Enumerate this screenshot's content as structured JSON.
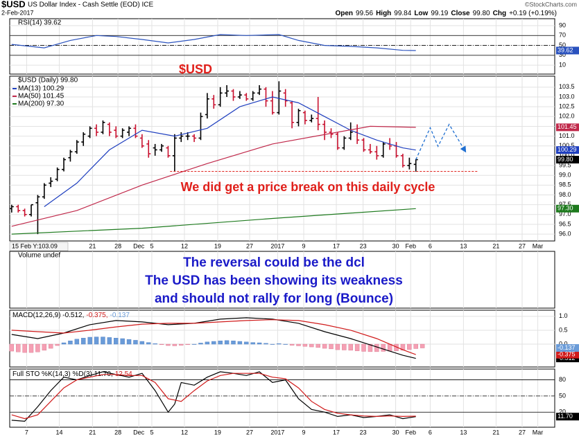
{
  "header": {
    "symbol": "$USD",
    "name": "US Dollar Index - Cash Settle (EOD) ICE",
    "date": "2-Feb-2017",
    "copyright": "©StockCharts.com",
    "quote": [
      "Open",
      "99.56",
      "High",
      "99.84",
      "Low",
      "99.19",
      "Close",
      "99.80",
      "Chg",
      "+0.19 (+0.19%)"
    ]
  },
  "chart_data": [
    {
      "type": "line",
      "title": "RSI(14) 39.62",
      "xlim": [
        -0.3,
        83.3
      ],
      "ylim": [
        -8,
        104
      ],
      "yticks": [
        90,
        70,
        50,
        30,
        10
      ],
      "levels": [
        {
          "value": 70,
          "style": "solid"
        },
        {
          "value": 50,
          "style": "dashdot"
        },
        {
          "value": 30,
          "style": "solid"
        }
      ],
      "series": [
        {
          "color": "#2a52be",
          "last_label": "39.62",
          "x": [
            0,
            5,
            9,
            13,
            16,
            20,
            24,
            28,
            32,
            36,
            41,
            44,
            48,
            52,
            56,
            60,
            62
          ],
          "values": [
            52,
            45,
            60,
            70,
            68,
            62,
            55,
            62,
            72,
            70,
            72,
            60,
            50,
            48,
            45,
            40,
            39.62
          ]
        }
      ]
    },
    {
      "type": "ohlc",
      "title": "$USD (Daily) 99.80",
      "xlim": [
        -0.3,
        83.3
      ],
      "ylim": [
        95.65,
        104.06
      ],
      "up_color": "#000000",
      "down_color": "#c8102e",
      "last_label": "99.80",
      "yticks": [
        103.5,
        {
          "value": 103,
          "label": "103.0"
        },
        102.5,
        {
          "value": 102,
          "label": "102.0"
        },
        101.5,
        {
          "value": 101,
          "label": "101.0"
        },
        100.5,
        {
          "value": 100,
          "label": "100.0"
        },
        99.5,
        {
          "value": 99,
          "label": "99.0"
        },
        98.5,
        {
          "value": 98,
          "label": "98.0"
        },
        97.5,
        {
          "value": 97,
          "label": "97.0"
        },
        96.5,
        {
          "value": 96,
          "label": "96.0"
        }
      ],
      "xticks": [
        {
          "value": 12.4,
          "label": "21"
        },
        {
          "value": 16.3,
          "label": "28"
        },
        {
          "value": 19.5,
          "label": "Dec"
        },
        {
          "value": 21.5,
          "label": "5"
        },
        {
          "value": 26.5,
          "label": "12"
        },
        {
          "value": 31.6,
          "label": "19"
        },
        {
          "value": 36.5,
          "label": "27"
        },
        {
          "value": 40.8,
          "label": "2017"
        },
        {
          "value": 44.8,
          "label": "9"
        },
        {
          "value": 49.8,
          "label": "17"
        },
        {
          "value": 53.9,
          "label": "23"
        },
        {
          "value": 58.9,
          "label": "30"
        },
        {
          "value": 61.2,
          "label": "Feb"
        },
        {
          "value": 64.2,
          "label": "6"
        },
        {
          "value": 69.3,
          "label": "13"
        },
        {
          "value": 74.3,
          "label": "21"
        },
        {
          "value": 78.3,
          "label": "27"
        },
        {
          "value": 80.7,
          "label": "Mar"
        }
      ],
      "ohlc": [
        [
          97.3,
          97.5,
          97.1,
          97.4
        ],
        [
          97.4,
          97.5,
          97.1,
          97.2
        ],
        [
          97.2,
          97.3,
          96.9,
          97.0
        ],
        [
          97.0,
          97.5,
          96.9,
          97.5
        ],
        [
          97.6,
          98.0,
          96.0,
          97.9
        ],
        [
          97.9,
          98.6,
          97.8,
          98.5
        ],
        [
          98.6,
          98.9,
          98.4,
          98.7
        ],
        [
          98.8,
          99.4,
          98.7,
          99.3
        ],
        [
          99.3,
          99.9,
          99.2,
          99.8
        ],
        [
          99.9,
          100.3,
          99.7,
          100.2
        ],
        [
          100.2,
          100.8,
          100.1,
          100.7
        ],
        [
          100.7,
          101.2,
          100.5,
          101.1
        ],
        [
          101.0,
          101.5,
          100.9,
          101.4
        ],
        [
          101.4,
          101.6,
          101.0,
          101.2
        ],
        [
          101.2,
          101.8,
          101.1,
          101.7
        ],
        [
          101.6,
          101.7,
          101.0,
          101.2
        ],
        [
          101.3,
          101.5,
          100.9,
          101.0
        ],
        [
          101.0,
          101.4,
          100.9,
          101.3
        ],
        [
          101.2,
          101.5,
          101.0,
          101.4
        ],
        [
          101.4,
          101.6,
          100.9,
          101.0
        ],
        [
          100.9,
          101.1,
          100.4,
          100.5
        ],
        [
          100.6,
          100.8,
          99.9,
          100.1
        ],
        [
          100.4,
          100.6,
          100.0,
          100.3
        ],
        [
          100.3,
          100.6,
          100.2,
          100.5
        ],
        [
          100.4,
          100.5,
          99.9,
          100.0
        ],
        [
          100.0,
          101.1,
          99.2,
          100.9
        ],
        [
          100.9,
          101.2,
          100.7,
          101.0
        ],
        [
          101.0,
          101.2,
          100.8,
          101.0
        ],
        [
          101.0,
          101.1,
          100.7,
          100.9
        ],
        [
          100.9,
          102.2,
          100.8,
          102.0
        ],
        [
          102.1,
          103.2,
          101.9,
          102.9
        ],
        [
          102.9,
          103.1,
          102.4,
          102.6
        ],
        [
          102.6,
          103.5,
          102.5,
          103.2
        ],
        [
          103.2,
          103.6,
          103.0,
          103.3
        ],
        [
          103.3,
          103.4,
          102.8,
          103.0
        ],
        [
          103.0,
          103.3,
          102.9,
          103.1
        ],
        [
          103.1,
          103.2,
          102.8,
          102.9
        ],
        [
          102.9,
          103.3,
          102.8,
          103.2
        ],
        [
          103.2,
          103.6,
          103.1,
          103.4
        ],
        [
          103.4,
          103.5,
          102.5,
          102.8
        ],
        [
          102.8,
          103.3,
          102.1,
          102.2
        ],
        [
          102.2,
          103.8,
          102.1,
          103.3
        ],
        [
          103.2,
          103.4,
          102.5,
          102.8
        ],
        [
          102.7,
          102.8,
          101.4,
          101.7
        ],
        [
          101.7,
          102.4,
          101.5,
          102.3
        ],
        [
          102.2,
          102.3,
          101.6,
          101.8
        ],
        [
          101.8,
          102.1,
          101.7,
          101.9
        ],
        [
          101.9,
          103.0,
          101.3,
          101.6
        ],
        [
          101.6,
          101.8,
          100.8,
          101.2
        ],
        [
          101.2,
          101.4,
          100.9,
          101.1
        ],
        [
          101.1,
          101.2,
          100.3,
          100.4
        ],
        [
          100.4,
          101.0,
          100.3,
          100.9
        ],
        [
          100.9,
          101.7,
          100.8,
          101.2
        ],
        [
          101.2,
          101.6,
          100.6,
          100.8
        ],
        [
          100.8,
          100.9,
          100.2,
          100.3
        ],
        [
          100.3,
          100.6,
          100.1,
          100.2
        ],
        [
          100.2,
          100.5,
          99.8,
          100.0
        ],
        [
          100.0,
          100.7,
          99.9,
          100.6
        ],
        [
          100.6,
          100.9,
          100.3,
          100.5
        ],
        [
          100.5,
          100.7,
          99.9,
          100.0
        ],
        [
          100.0,
          100.1,
          99.4,
          99.5
        ],
        [
          99.5,
          99.9,
          99.3,
          99.6
        ],
        [
          99.56,
          99.84,
          99.19,
          99.8
        ]
      ],
      "series": [
        {
          "name": "MA(13) 100.29",
          "color": "#1f3fbf",
          "last_label": "100.29",
          "x": [
            5,
            10,
            15,
            20,
            25,
            30,
            35,
            40,
            44,
            48,
            52,
            56,
            60,
            62
          ],
          "values": [
            97.4,
            98.6,
            100.3,
            101.3,
            101.0,
            101.4,
            102.5,
            103.0,
            102.7,
            102.0,
            101.3,
            100.8,
            100.4,
            100.29
          ]
        },
        {
          "name": "MA(50) 101.45",
          "color": "#c0284a",
          "last_label": "101.45",
          "x": [
            0,
            10,
            20,
            30,
            40,
            50,
            55,
            62
          ],
          "values": [
            96.4,
            97.2,
            98.5,
            99.6,
            100.6,
            101.2,
            101.5,
            101.45
          ]
        },
        {
          "name": "MA(200) 97.30",
          "color": "#1e7a1e",
          "last_label": "97.30",
          "x": [
            0,
            20,
            40,
            62
          ],
          "values": [
            96.0,
            96.3,
            96.8,
            97.3
          ]
        }
      ],
      "annotations": [
        "$USD",
        "We did get a price break on this daily cycle"
      ],
      "support": {
        "value": 99.2,
        "x": [
          24.3,
          71.6
        ],
        "color": "#e0201b"
      },
      "projection": {
        "color": "#1f6fd1",
        "x": [
          62,
          64.2,
          65.4,
          67.1,
          69.5
        ],
        "values": [
          99.8,
          101.43,
          100.48,
          101.6,
          100.27
        ]
      },
      "note": "15 Feb Y:103.09"
    },
    {
      "type": "annotation",
      "title": "Volume undef",
      "color": "#1a1ac8",
      "annotations": [
        "The reversal could be the dcl",
        "The USD has been showing its weakness",
        "and should not rally for long  (Bounce)"
      ]
    },
    {
      "type": "macd",
      "xlim": [
        -0.3,
        83.3
      ],
      "ylim": [
        -0.82,
        1.22
      ],
      "legend": [
        {
          "text": "MACD(12,26,9) -0.512,",
          "color": "#000000"
        },
        {
          "text": "-0.375,",
          "color": "#d01a1a"
        },
        {
          "text": "-0.137",
          "color": "#6a9bd8"
        }
      ],
      "yticks": [
        {
          "value": 1,
          "label": "1.0"
        },
        0.5,
        {
          "value": 0,
          "label": "0.0"
        }
      ],
      "series": [
        {
          "color": "#000000",
          "last_label": "-0.512",
          "x": [
            0,
            4,
            8,
            12,
            16,
            20,
            24,
            28,
            32,
            36,
            40,
            44,
            48,
            52,
            56,
            60,
            62
          ],
          "values": [
            0.35,
            0.2,
            0.4,
            0.7,
            0.85,
            0.8,
            0.7,
            0.75,
            0.9,
            0.95,
            0.9,
            0.75,
            0.45,
            0.2,
            -0.1,
            -0.4,
            -0.512
          ]
        },
        {
          "color": "#d01a1a",
          "last_label": "-0.375",
          "x": [
            0,
            4,
            8,
            12,
            16,
            20,
            24,
            28,
            32,
            36,
            40,
            44,
            48,
            52,
            56,
            60,
            62
          ],
          "values": [
            0.5,
            0.45,
            0.4,
            0.5,
            0.62,
            0.72,
            0.75,
            0.75,
            0.8,
            0.85,
            0.88,
            0.85,
            0.7,
            0.5,
            0.2,
            -0.2,
            -0.375
          ]
        }
      ],
      "histogram": {
        "pos_color": "#6a9bd8",
        "neg_color": "#f5a0b4",
        "last_label": "-0.137",
        "values": [
          -0.25,
          -0.28,
          -0.3,
          -0.3,
          -0.28,
          -0.22,
          -0.15,
          -0.05,
          0.05,
          0.12,
          0.18,
          0.22,
          0.25,
          0.26,
          0.26,
          0.24,
          0.22,
          0.2,
          0.17,
          0.14,
          0.1,
          0.06,
          0.02,
          -0.02,
          -0.05,
          -0.06,
          -0.04,
          -0.02,
          0.0,
          0.04,
          0.08,
          0.1,
          0.12,
          0.13,
          0.12,
          0.1,
          0.08,
          0.06,
          0.05,
          0.03,
          0.0,
          0.02,
          0.0,
          -0.04,
          -0.06,
          -0.08,
          -0.1,
          -0.12,
          -0.15,
          -0.17,
          -0.2,
          -0.21,
          -0.22,
          -0.24,
          -0.26,
          -0.27,
          -0.27,
          -0.26,
          -0.25,
          -0.24,
          -0.22,
          -0.19,
          -0.16,
          -0.137
        ]
      }
    },
    {
      "type": "line",
      "xlim": [
        -0.3,
        83.3
      ],
      "ylim": [
        -8,
        100
      ],
      "legend": [
        {
          "text": "Full STO %K(14,3) %D(3) 11.70,",
          "color": "#000000"
        },
        {
          "text": "12.54",
          "color": "#d01a1a"
        }
      ],
      "yticks": [
        80,
        50,
        20
      ],
      "levels": [
        {
          "value": 80,
          "style": "solid"
        },
        {
          "value": 50,
          "style": "dashdot"
        },
        {
          "value": 20,
          "style": "solid"
        }
      ],
      "xticks": [
        {
          "value": 2.3,
          "label": "7"
        },
        {
          "value": 7.3,
          "label": "14"
        },
        {
          "value": 12.4,
          "label": "21"
        },
        {
          "value": 16.3,
          "label": "28"
        },
        {
          "value": 19.5,
          "label": "Dec"
        },
        {
          "value": 21.5,
          "label": "5"
        },
        {
          "value": 26.5,
          "label": "12"
        },
        {
          "value": 31.6,
          "label": "19"
        },
        {
          "value": 36.5,
          "label": "27"
        },
        {
          "value": 40.8,
          "label": "2017"
        },
        {
          "value": 44.8,
          "label": "9"
        },
        {
          "value": 49.8,
          "label": "17"
        },
        {
          "value": 53.9,
          "label": "23"
        },
        {
          "value": 58.9,
          "label": "30"
        },
        {
          "value": 61.2,
          "label": "Feb"
        },
        {
          "value": 64.2,
          "label": "6"
        },
        {
          "value": 69.3,
          "label": "13"
        },
        {
          "value": 74.3,
          "label": "21"
        },
        {
          "value": 78.3,
          "label": "27"
        },
        {
          "value": 80.7,
          "label": "Mar"
        }
      ],
      "series": [
        {
          "color": "#000000",
          "last_label": "11.70",
          "x": [
            0,
            2,
            4,
            6,
            8,
            10,
            12,
            14,
            16,
            18,
            20,
            22,
            24,
            25,
            26,
            28,
            30,
            32,
            34,
            36,
            38,
            40,
            42,
            44,
            46,
            48,
            50,
            52,
            54,
            56,
            58,
            60,
            62
          ],
          "values": [
            5,
            3,
            30,
            60,
            85,
            80,
            88,
            95,
            90,
            85,
            92,
            60,
            20,
            35,
            75,
            70,
            85,
            95,
            92,
            88,
            95,
            75,
            80,
            45,
            25,
            20,
            12,
            15,
            10,
            12,
            15,
            8,
            11.7
          ]
        },
        {
          "color": "#d01a1a",
          "x": [
            0,
            2,
            4,
            6,
            8,
            10,
            12,
            14,
            16,
            18,
            20,
            22,
            24,
            26,
            28,
            30,
            32,
            34,
            36,
            38,
            40,
            42,
            44,
            46,
            48,
            50,
            52,
            54,
            56,
            58,
            60,
            62
          ],
          "values": [
            15,
            8,
            15,
            40,
            65,
            80,
            85,
            90,
            90,
            88,
            88,
            75,
            45,
            40,
            60,
            78,
            88,
            92,
            92,
            92,
            85,
            82,
            65,
            40,
            25,
            18,
            15,
            13,
            12,
            13,
            12,
            12.54
          ]
        }
      ]
    }
  ]
}
